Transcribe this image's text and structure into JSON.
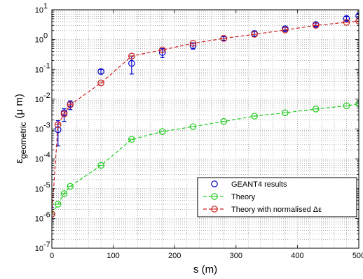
{
  "chart_data": {
    "type": "scatter",
    "title": "",
    "xlabel": "s (m)",
    "ylabel_main": "ε",
    "ylabel_sub": "geometric",
    "ylabel_unit": "(μ m)",
    "xlim": [
      0,
      500
    ],
    "ylim": [
      1e-07,
      10
    ],
    "yscale": "log",
    "grid": true,
    "legend_placement": "lower-right",
    "x_ticks": [
      0,
      100,
      200,
      300,
      400,
      500
    ],
    "y_tick_exponents": [
      -7,
      -6,
      -5,
      -4,
      -3,
      -2,
      -1,
      0,
      1
    ],
    "series": [
      {
        "name": "GEANT4 results",
        "style": "markers-errorbars",
        "color": "#0000cc",
        "x": [
          0,
          10,
          20,
          30,
          80,
          130,
          180,
          230,
          280,
          330,
          380,
          430,
          480,
          500
        ],
        "y": [
          1.4e-06,
          0.00095,
          0.0035,
          0.0068,
          0.085,
          0.16,
          0.37,
          0.62,
          1.1,
          1.6,
          2.3,
          3.2,
          5.1,
          6.2
        ],
        "err_low": [
          9e-07,
          0.00027,
          0.0018,
          0.0045,
          0.07,
          0.07,
          0.25,
          0.48,
          0.95,
          1.3,
          2.0,
          2.8,
          4.4,
          5.4
        ],
        "err_high": [
          2.3e-06,
          0.0019,
          0.0048,
          0.0088,
          0.1,
          0.28,
          0.5,
          0.78,
          1.25,
          1.95,
          2.65,
          3.6,
          6.0,
          7.2
        ]
      },
      {
        "name": "Theory",
        "style": "dashed-markers",
        "color": "#22cc22",
        "x": [
          0,
          10,
          20,
          30,
          80,
          130,
          180,
          230,
          280,
          330,
          380,
          430,
          480,
          500
        ],
        "y": [
          1.4e-06,
          3e-06,
          6.8e-06,
          1.2e-05,
          6e-05,
          0.00045,
          0.00082,
          0.0012,
          0.0018,
          0.0027,
          0.0035,
          0.0047,
          0.006,
          0.007
        ]
      },
      {
        "name": "Theory with normalised Δε",
        "style": "dashed-markers",
        "color": "#cc2222",
        "x": [
          0,
          10,
          20,
          30,
          80,
          130,
          180,
          230,
          280,
          330,
          380,
          430,
          480,
          500
        ],
        "y": [
          1.4e-06,
          0.0014,
          0.0032,
          0.0065,
          0.035,
          0.28,
          0.45,
          0.75,
          1.1,
          1.5,
          2.1,
          3.0,
          3.8,
          4.2
        ]
      }
    ]
  }
}
